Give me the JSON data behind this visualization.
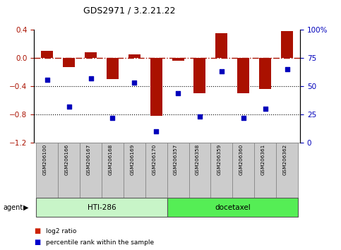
{
  "title": "GDS2971 / 3.2.21.22",
  "samples": [
    "GSM206100",
    "GSM206166",
    "GSM206167",
    "GSM206168",
    "GSM206169",
    "GSM206170",
    "GSM206357",
    "GSM206358",
    "GSM206359",
    "GSM206360",
    "GSM206361",
    "GSM206362"
  ],
  "log2_ratio": [
    0.1,
    -0.13,
    0.08,
    -0.3,
    0.05,
    -0.82,
    -0.04,
    -0.5,
    0.35,
    -0.5,
    -0.44,
    0.38
  ],
  "percentile_rank": [
    56,
    32,
    57,
    22,
    53,
    10,
    44,
    23,
    63,
    22,
    30,
    65
  ],
  "groups": [
    {
      "label": "HTI-286",
      "start": 0,
      "end": 6,
      "color": "#c8f5c8"
    },
    {
      "label": "docetaxel",
      "start": 6,
      "end": 12,
      "color": "#55ee55"
    }
  ],
  "bar_color": "#aa1100",
  "dot_color": "#0000bb",
  "ylim_left": [
    -1.2,
    0.4
  ],
  "ylim_right": [
    0,
    100
  ],
  "yticks_left": [
    -1.2,
    -0.8,
    -0.4,
    0.0,
    0.4
  ],
  "yticks_right": [
    0,
    25,
    50,
    75,
    100
  ],
  "dotted_lines": [
    -0.4,
    -0.8
  ],
  "legend_items": [
    {
      "label": "log2 ratio",
      "color": "#cc2200"
    },
    {
      "label": "percentile rank within the sample",
      "color": "#0000cc"
    }
  ],
  "agent_label": "agent",
  "label_box_color": "#cccccc",
  "label_box_edge": "#888888"
}
